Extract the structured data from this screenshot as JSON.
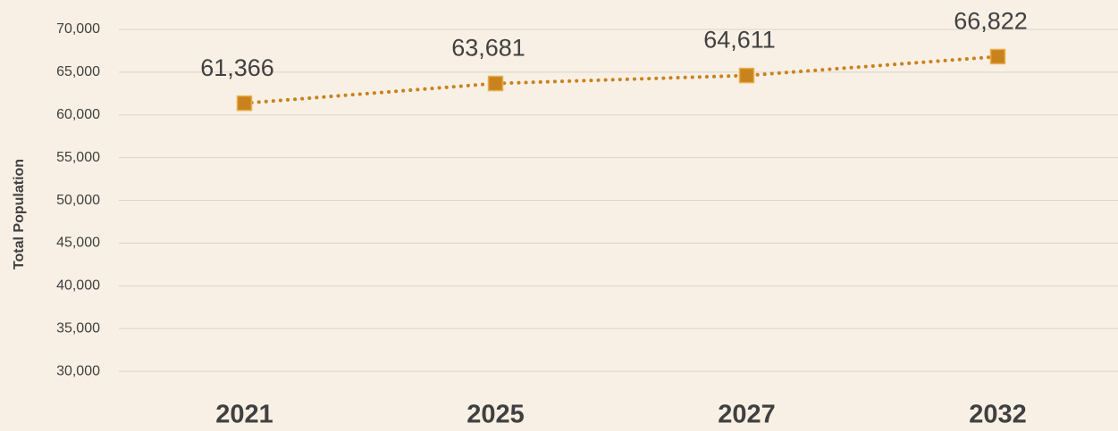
{
  "chart_data": {
    "type": "line",
    "y_axis_label": "Total Population",
    "categories": [
      "2021",
      "2025",
      "2027",
      "2032"
    ],
    "values": [
      61366,
      63681,
      64611,
      66822
    ],
    "value_labels": [
      "61,366",
      "63,681",
      "64,611",
      "66,822"
    ],
    "color": "#c8821e",
    "ylim": [
      25000,
      70000
    ],
    "yticks": [
      {
        "value": 30000,
        "label": "30,000"
      },
      {
        "value": 35000,
        "label": "35,000"
      },
      {
        "value": 40000,
        "label": "40,000"
      },
      {
        "value": 45000,
        "label": "45,000"
      },
      {
        "value": 50000,
        "label": "50,000"
      },
      {
        "value": 55000,
        "label": "55,000"
      },
      {
        "value": 60000,
        "label": "60,000"
      },
      {
        "value": 65000,
        "label": "65,000"
      },
      {
        "value": 70000,
        "label": "70,000"
      }
    ],
    "grid": true
  }
}
